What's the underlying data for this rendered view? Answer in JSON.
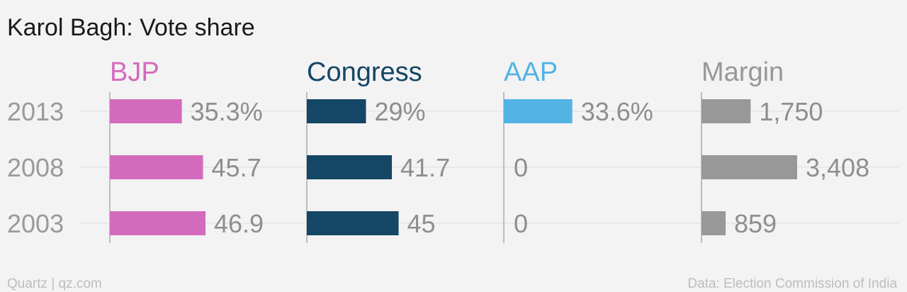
{
  "chart_data": {
    "type": "bar",
    "orientation": "horizontal",
    "layout": "small-multiples",
    "title": "Karol Bagh: Vote share",
    "categories": [
      "2013",
      "2008",
      "2003"
    ],
    "series": [
      {
        "name": "BJP",
        "color": "#d36bbd",
        "values": [
          35.3,
          45.7,
          46.9
        ],
        "labels": [
          "35.3%",
          "45.7",
          "46.9"
        ]
      },
      {
        "name": "Congress",
        "color": "#144665",
        "values": [
          29,
          41.7,
          45
        ],
        "labels": [
          "29%",
          "41.7",
          "45"
        ]
      },
      {
        "name": "AAP",
        "color": "#53b3e5",
        "values": [
          33.6,
          0,
          0
        ],
        "labels": [
          "33.6%",
          "0",
          "0"
        ]
      },
      {
        "name": "Margin",
        "color": "#989898",
        "values": [
          1750,
          3408,
          859
        ],
        "labels": [
          "1,750",
          "3,408",
          "859"
        ]
      }
    ],
    "grid": true
  },
  "footer": {
    "source_left": "Quartz | qz.com",
    "source_right": "Data: Election Commission of India"
  }
}
